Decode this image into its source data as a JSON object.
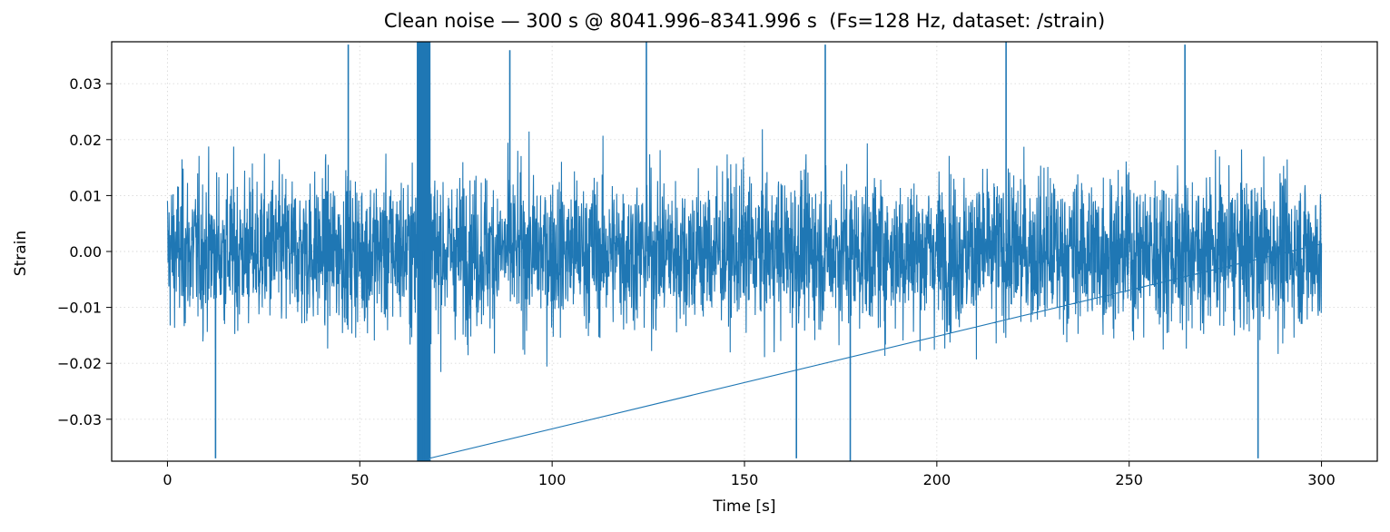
{
  "chart_data": {
    "type": "line",
    "title": "Clean noise — 300 s @ 8041.996–8341.996 s  (Fs=128 Hz, dataset: /strain)",
    "xlabel": "Time [s]",
    "ylabel": "Strain",
    "xlim": [
      -14.5,
      314.5
    ],
    "ylim": [
      -0.0375,
      0.0375
    ],
    "xticks": [
      0,
      50,
      100,
      150,
      200,
      250,
      300
    ],
    "xtick_labels": [
      "0",
      "50",
      "100",
      "150",
      "200",
      "250",
      "300"
    ],
    "yticks": [
      -0.03,
      -0.02,
      -0.01,
      0.0,
      0.01,
      0.02,
      0.03
    ],
    "ytick_labels": [
      "−0.03",
      "−0.02",
      "−0.01",
      "0.00",
      "0.01",
      "0.02",
      "0.03"
    ],
    "grid": true,
    "grid_style": "dotted",
    "series": [
      {
        "color": "#1f77b4",
        "x_start": 0,
        "x_end": 300,
        "sample_rate_hz": 128,
        "typical_envelope": [
          -0.025,
          0.025
        ],
        "peaks": [
          {
            "x": 47,
            "y": 0.037
          },
          {
            "x": 65,
            "y": 0.0375
          },
          {
            "x": 66.5,
            "y": -0.0375
          },
          {
            "x": 89,
            "y": 0.036
          },
          {
            "x": 124.5,
            "y": 0.0375
          },
          {
            "x": 171,
            "y": 0.037
          },
          {
            "x": 177.5,
            "y": -0.0375
          },
          {
            "x": 218,
            "y": 0.0375
          },
          {
            "x": 264.5,
            "y": 0.037
          },
          {
            "x": 12.5,
            "y": -0.037
          },
          {
            "x": 163.5,
            "y": -0.037
          },
          {
            "x": 283.5,
            "y": -0.037
          }
        ]
      }
    ]
  }
}
